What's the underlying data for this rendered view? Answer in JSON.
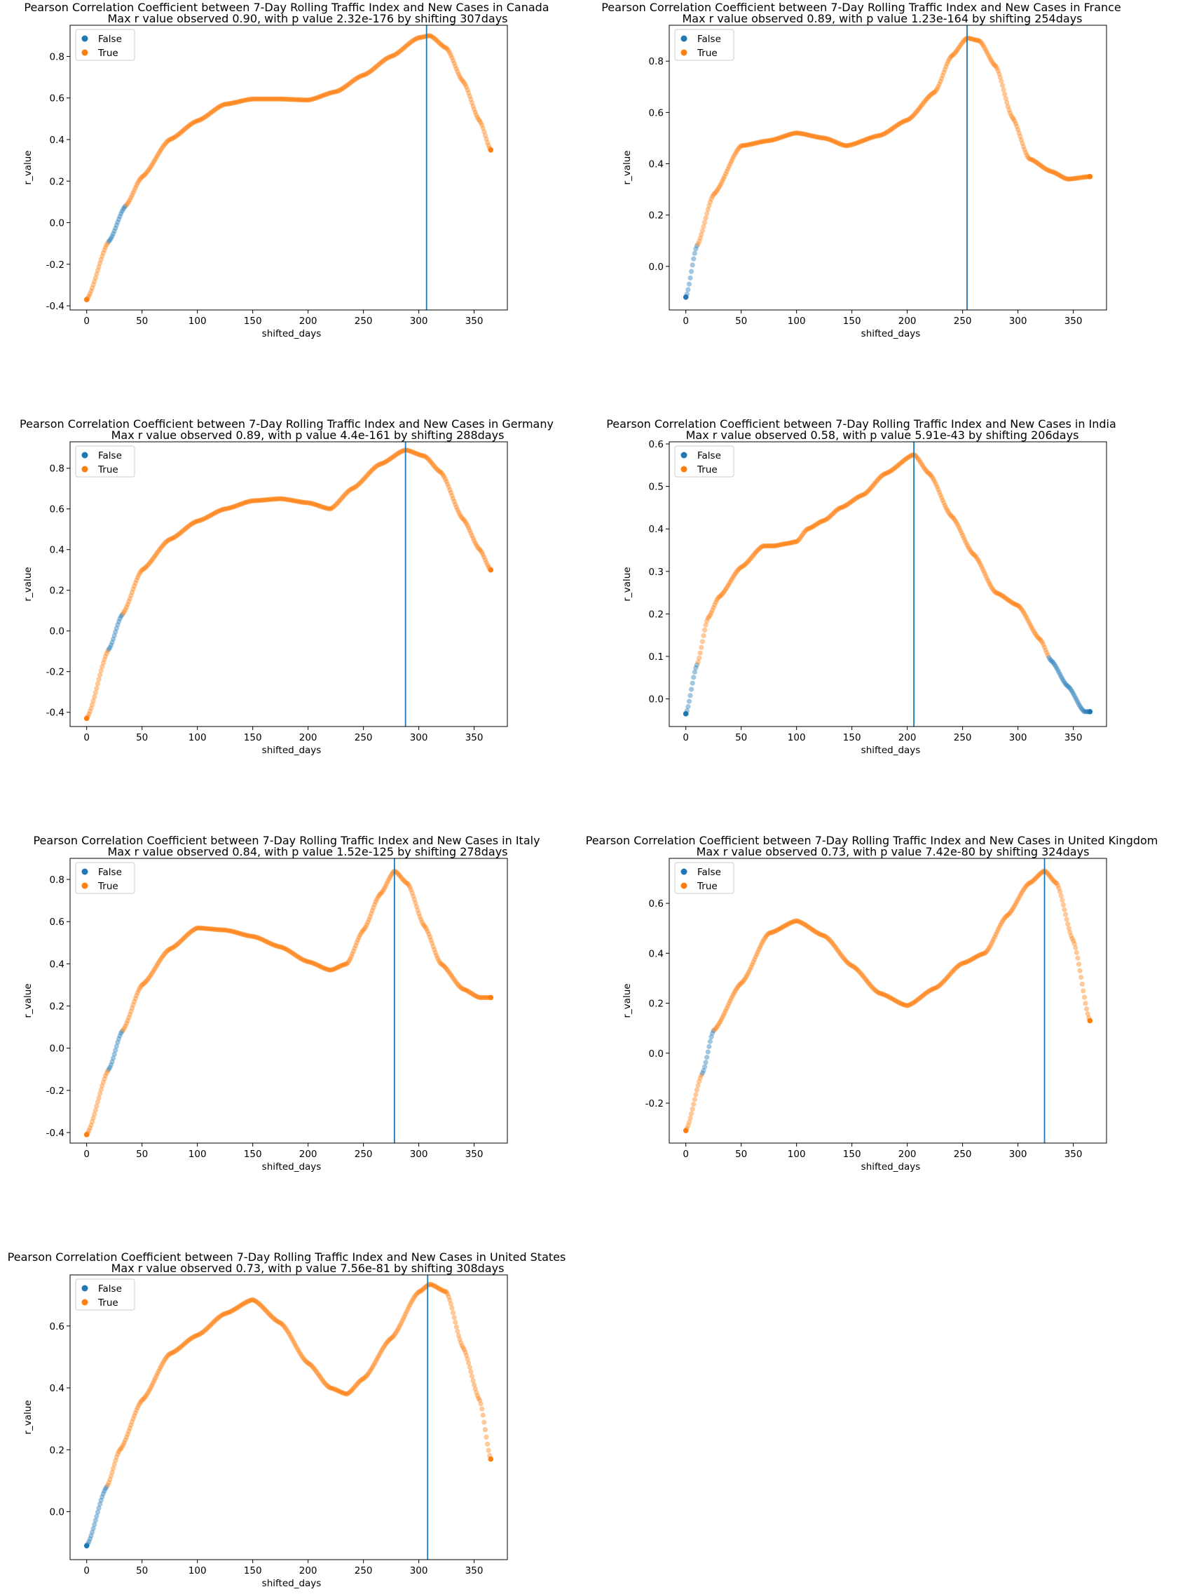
{
  "palette": {
    "false_color": "#1f77b4",
    "true_color": "#ff7f0e",
    "vline_color": "#1f77b4"
  },
  "chart_data": [
    {
      "type": "scatter",
      "country": "Canada",
      "title_line1": "Pearson Correlation Coefficient between 7-Day Rolling Traffic Index and New Cases in Canada",
      "title_line2": "Max r value observed 0.90, with p value 2.32e-176 by shifting 307days",
      "xlabel": "shifted_days",
      "ylabel": "r_value",
      "xlim": [
        -15,
        380
      ],
      "ylim": [
        -0.42,
        0.95
      ],
      "xticks": [
        0,
        50,
        100,
        150,
        200,
        250,
        300,
        350
      ],
      "yticks": [
        -0.4,
        -0.2,
        0.0,
        0.2,
        0.4,
        0.6,
        0.8
      ],
      "ytick_labels": [
        "-0.4",
        "-0.2",
        "0.0",
        "0.2",
        "0.4",
        "0.6",
        "0.8"
      ],
      "legend": [
        "False",
        "True"
      ],
      "legend_loc": "upper left",
      "vline_x": 307,
      "x_max": 365,
      "curve": [
        [
          0,
          -0.37
        ],
        [
          20,
          -0.09
        ],
        [
          35,
          0.08
        ],
        [
          50,
          0.22
        ],
        [
          75,
          0.4
        ],
        [
          100,
          0.49
        ],
        [
          125,
          0.57
        ],
        [
          150,
          0.595
        ],
        [
          175,
          0.595
        ],
        [
          200,
          0.59
        ],
        [
          225,
          0.63
        ],
        [
          250,
          0.71
        ],
        [
          275,
          0.8
        ],
        [
          300,
          0.89
        ],
        [
          310,
          0.9
        ],
        [
          325,
          0.84
        ],
        [
          340,
          0.68
        ],
        [
          355,
          0.49
        ],
        [
          365,
          0.35
        ]
      ],
      "false_ranges": [
        [
          20,
          35
        ]
      ]
    },
    {
      "type": "scatter",
      "country": "France",
      "title_line1": "Pearson Correlation Coefficient between 7-Day Rolling Traffic Index and New Cases in France",
      "title_line2": "Max r value observed 0.89, with p value 1.23e-164 by shifting 254days",
      "xlabel": "shifted_days",
      "ylabel": "r_value",
      "xlim": [
        -15,
        380
      ],
      "ylim": [
        -0.17,
        0.94
      ],
      "xticks": [
        0,
        50,
        100,
        150,
        200,
        250,
        300,
        350
      ],
      "yticks": [
        0.0,
        0.2,
        0.4,
        0.6,
        0.8
      ],
      "ytick_labels": [
        "0.0",
        "0.2",
        "0.4",
        "0.6",
        "0.8"
      ],
      "legend": [
        "False",
        "True"
      ],
      "legend_loc": "upper left",
      "vline_x": 254,
      "x_max": 365,
      "curve": [
        [
          0,
          -0.12
        ],
        [
          10,
          0.08
        ],
        [
          25,
          0.28
        ],
        [
          50,
          0.47
        ],
        [
          75,
          0.49
        ],
        [
          100,
          0.52
        ],
        [
          125,
          0.5
        ],
        [
          145,
          0.47
        ],
        [
          175,
          0.51
        ],
        [
          200,
          0.57
        ],
        [
          225,
          0.68
        ],
        [
          240,
          0.82
        ],
        [
          254,
          0.89
        ],
        [
          265,
          0.88
        ],
        [
          280,
          0.78
        ],
        [
          295,
          0.58
        ],
        [
          310,
          0.42
        ],
        [
          330,
          0.37
        ],
        [
          345,
          0.34
        ],
        [
          365,
          0.35
        ]
      ],
      "false_ranges": [
        [
          0,
          10
        ]
      ]
    },
    {
      "type": "scatter",
      "country": "Germany",
      "title_line1": "Pearson Correlation Coefficient between 7-Day Rolling Traffic Index and New Cases in Germany",
      "title_line2": "Max r value observed 0.89, with p value 4.4e-161 by shifting 288days",
      "xlabel": "shifted_days",
      "ylabel": "r_value",
      "xlim": [
        -15,
        380
      ],
      "ylim": [
        -0.47,
        0.93
      ],
      "xticks": [
        0,
        50,
        100,
        150,
        200,
        250,
        300,
        350
      ],
      "yticks": [
        -0.4,
        -0.2,
        0.0,
        0.2,
        0.4,
        0.6,
        0.8
      ],
      "ytick_labels": [
        "-0.4",
        "-0.2",
        "0.0",
        "0.2",
        "0.4",
        "0.6",
        "0.8"
      ],
      "legend": [
        "False",
        "True"
      ],
      "legend_loc": "upper left",
      "vline_x": 288,
      "x_max": 365,
      "curve": [
        [
          0,
          -0.43
        ],
        [
          20,
          -0.09
        ],
        [
          32,
          0.08
        ],
        [
          50,
          0.3
        ],
        [
          75,
          0.45
        ],
        [
          100,
          0.54
        ],
        [
          125,
          0.6
        ],
        [
          150,
          0.64
        ],
        [
          175,
          0.65
        ],
        [
          200,
          0.63
        ],
        [
          220,
          0.6
        ],
        [
          240,
          0.7
        ],
        [
          265,
          0.82
        ],
        [
          288,
          0.89
        ],
        [
          305,
          0.86
        ],
        [
          320,
          0.78
        ],
        [
          340,
          0.55
        ],
        [
          355,
          0.4
        ],
        [
          365,
          0.3
        ]
      ],
      "false_ranges": [
        [
          20,
          32
        ]
      ]
    },
    {
      "type": "scatter",
      "country": "India",
      "title_line1": "Pearson Correlation Coefficient between 7-Day Rolling Traffic Index and New Cases in India",
      "title_line2": "Max r value observed 0.58, with p value 5.91e-43 by shifting 206days",
      "xlabel": "shifted_days",
      "ylabel": "r_value",
      "xlim": [
        -15,
        380
      ],
      "ylim": [
        -0.065,
        0.605
      ],
      "xticks": [
        0,
        50,
        100,
        150,
        200,
        250,
        300,
        350
      ],
      "yticks": [
        0.0,
        0.1,
        0.2,
        0.3,
        0.4,
        0.5,
        0.6
      ],
      "ytick_labels": [
        "0.0",
        "0.1",
        "0.2",
        "0.3",
        "0.4",
        "0.5",
        "0.6"
      ],
      "legend": [
        "False",
        "True"
      ],
      "legend_loc": "upper left",
      "vline_x": 206,
      "x_max": 365,
      "curve": [
        [
          0,
          -0.035
        ],
        [
          10,
          0.08
        ],
        [
          20,
          0.19
        ],
        [
          30,
          0.24
        ],
        [
          50,
          0.31
        ],
        [
          70,
          0.36
        ],
        [
          80,
          0.36
        ],
        [
          90,
          0.365
        ],
        [
          100,
          0.37
        ],
        [
          110,
          0.4
        ],
        [
          125,
          0.42
        ],
        [
          140,
          0.45
        ],
        [
          160,
          0.48
        ],
        [
          180,
          0.53
        ],
        [
          206,
          0.575
        ],
        [
          220,
          0.53
        ],
        [
          240,
          0.43
        ],
        [
          260,
          0.34
        ],
        [
          280,
          0.25
        ],
        [
          300,
          0.22
        ],
        [
          320,
          0.14
        ],
        [
          330,
          0.09
        ],
        [
          345,
          0.03
        ],
        [
          360,
          -0.03
        ],
        [
          365,
          -0.03
        ]
      ],
      "false_ranges": [
        [
          0,
          10
        ],
        [
          328,
          365
        ]
      ]
    },
    {
      "type": "scatter",
      "country": "Italy",
      "title_line1": "Pearson Correlation Coefficient between 7-Day Rolling Traffic Index and New Cases in Italy",
      "title_line2": "Max r value observed 0.84, with p value 1.52e-125 by shifting 278days",
      "xlabel": "shifted_days",
      "ylabel": "r_value",
      "xlim": [
        -15,
        380
      ],
      "ylim": [
        -0.45,
        0.9
      ],
      "xticks": [
        0,
        50,
        100,
        150,
        200,
        250,
        300,
        350
      ],
      "yticks": [
        -0.4,
        -0.2,
        0.0,
        0.2,
        0.4,
        0.6,
        0.8
      ],
      "ytick_labels": [
        "-0.4",
        "-0.2",
        "0.0",
        "0.2",
        "0.4",
        "0.6",
        "0.8"
      ],
      "legend": [
        "False",
        "True"
      ],
      "legend_loc": "upper left",
      "vline_x": 278,
      "x_max": 365,
      "curve": [
        [
          0,
          -0.41
        ],
        [
          20,
          -0.1
        ],
        [
          32,
          0.08
        ],
        [
          50,
          0.3
        ],
        [
          75,
          0.47
        ],
        [
          100,
          0.57
        ],
        [
          125,
          0.56
        ],
        [
          150,
          0.53
        ],
        [
          175,
          0.48
        ],
        [
          200,
          0.41
        ],
        [
          220,
          0.37
        ],
        [
          235,
          0.4
        ],
        [
          250,
          0.56
        ],
        [
          265,
          0.73
        ],
        [
          278,
          0.84
        ],
        [
          290,
          0.78
        ],
        [
          305,
          0.58
        ],
        [
          320,
          0.4
        ],
        [
          340,
          0.28
        ],
        [
          355,
          0.24
        ],
        [
          365,
          0.24
        ]
      ],
      "false_ranges": [
        [
          20,
          32
        ]
      ]
    },
    {
      "type": "scatter",
      "country": "United Kingdom",
      "title_line1": "Pearson Correlation Coefficient between 7-Day Rolling Traffic Index and New Cases in United Kingdom",
      "title_line2": "Max r value observed 0.73, with p value 7.42e-80 by shifting 324days",
      "xlabel": "shifted_days",
      "ylabel": "r_value",
      "xlim": [
        -15,
        380
      ],
      "ylim": [
        -0.36,
        0.78
      ],
      "xticks": [
        0,
        50,
        100,
        150,
        200,
        250,
        300,
        350
      ],
      "yticks": [
        -0.2,
        0.0,
        0.2,
        0.4,
        0.6
      ],
      "ytick_labels": [
        "-0.2",
        "0.0",
        "0.2",
        "0.4",
        "0.6"
      ],
      "legend": [
        "False",
        "True"
      ],
      "legend_loc": "upper left",
      "vline_x": 324,
      "x_max": 365,
      "curve": [
        [
          0,
          -0.31
        ],
        [
          15,
          -0.08
        ],
        [
          25,
          0.09
        ],
        [
          50,
          0.28
        ],
        [
          75,
          0.48
        ],
        [
          100,
          0.53
        ],
        [
          125,
          0.47
        ],
        [
          150,
          0.35
        ],
        [
          175,
          0.24
        ],
        [
          200,
          0.19
        ],
        [
          225,
          0.26
        ],
        [
          250,
          0.36
        ],
        [
          270,
          0.4
        ],
        [
          290,
          0.55
        ],
        [
          310,
          0.68
        ],
        [
          324,
          0.73
        ],
        [
          335,
          0.68
        ],
        [
          350,
          0.45
        ],
        [
          365,
          0.13
        ]
      ],
      "false_ranges": [
        [
          15,
          25
        ]
      ]
    },
    {
      "type": "scatter",
      "country": "United States",
      "title_line1": "Pearson Correlation Coefficient between 7-Day Rolling Traffic Index and New Cases in United States",
      "title_line2": "Max r value observed 0.73, with p value 7.56e-81 by shifting 308days",
      "xlabel": "shifted_days",
      "ylabel": "r_value",
      "xlim": [
        -15,
        380
      ],
      "ylim": [
        -0.155,
        0.765
      ],
      "xticks": [
        0,
        50,
        100,
        150,
        200,
        250,
        300,
        350
      ],
      "yticks": [
        0.0,
        0.2,
        0.4,
        0.6
      ],
      "ytick_labels": [
        "0.0",
        "0.2",
        "0.4",
        "0.6"
      ],
      "legend": [
        "False",
        "True"
      ],
      "legend_loc": "upper left",
      "vline_x": 308,
      "x_max": 365,
      "curve": [
        [
          0,
          -0.11
        ],
        [
          18,
          0.08
        ],
        [
          30,
          0.2
        ],
        [
          50,
          0.36
        ],
        [
          75,
          0.51
        ],
        [
          100,
          0.57
        ],
        [
          125,
          0.64
        ],
        [
          150,
          0.685
        ],
        [
          175,
          0.61
        ],
        [
          200,
          0.48
        ],
        [
          220,
          0.4
        ],
        [
          235,
          0.38
        ],
        [
          250,
          0.43
        ],
        [
          275,
          0.56
        ],
        [
          300,
          0.71
        ],
        [
          310,
          0.735
        ],
        [
          325,
          0.71
        ],
        [
          340,
          0.53
        ],
        [
          355,
          0.36
        ],
        [
          365,
          0.17
        ]
      ],
      "false_ranges": [
        [
          0,
          18
        ]
      ]
    }
  ]
}
